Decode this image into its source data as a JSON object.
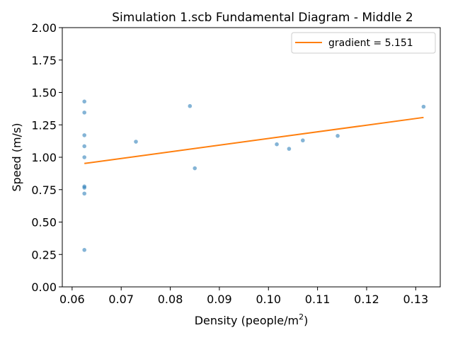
{
  "chart_data": {
    "type": "scatter",
    "title": "Simulation 1.scb Fundamental Diagram - Middle 2",
    "xlabel": "Density (people/m",
    "xlabel_superscript": "2",
    "xlabel_suffix": ")",
    "ylabel": "Speed (m/s)",
    "xlim": [
      0.058,
      0.135
    ],
    "ylim": [
      0.0,
      2.0
    ],
    "xticks": [
      "0.06",
      "0.07",
      "0.08",
      "0.09",
      "0.10",
      "0.11",
      "0.12",
      "0.13"
    ],
    "xtick_values": [
      0.06,
      0.07,
      0.08,
      0.09,
      0.1,
      0.11,
      0.12,
      0.13
    ],
    "yticks": [
      "0.00",
      "0.25",
      "0.50",
      "0.75",
      "1.00",
      "1.25",
      "1.50",
      "1.75",
      "2.00"
    ],
    "ytick_values": [
      0.0,
      0.25,
      0.5,
      0.75,
      1.0,
      1.25,
      1.5,
      1.75,
      2.0
    ],
    "grid": false,
    "legend_position": "top-right",
    "series": [
      {
        "kind": "scatter",
        "color": "#1f77b4",
        "points": [
          {
            "x": 0.0625,
            "y": 1.43
          },
          {
            "x": 0.0625,
            "y": 1.345
          },
          {
            "x": 0.0625,
            "y": 1.17
          },
          {
            "x": 0.0625,
            "y": 1.085
          },
          {
            "x": 0.0625,
            "y": 1.0
          },
          {
            "x": 0.0625,
            "y": 0.775
          },
          {
            "x": 0.0625,
            "y": 0.765
          },
          {
            "x": 0.0625,
            "y": 0.72
          },
          {
            "x": 0.0625,
            "y": 0.285
          },
          {
            "x": 0.073,
            "y": 1.12
          },
          {
            "x": 0.084,
            "y": 1.395
          },
          {
            "x": 0.085,
            "y": 0.915
          },
          {
            "x": 0.1017,
            "y": 1.1
          },
          {
            "x": 0.1042,
            "y": 1.065
          },
          {
            "x": 0.107,
            "y": 1.13
          },
          {
            "x": 0.1141,
            "y": 1.165
          },
          {
            "x": 0.1316,
            "y": 1.39
          }
        ]
      },
      {
        "kind": "line",
        "name": "gradient = 5.151",
        "color": "#ff7f0e",
        "points": [
          {
            "x": 0.0625,
            "y": 0.952
          },
          {
            "x": 0.1316,
            "y": 1.307
          }
        ]
      }
    ]
  }
}
